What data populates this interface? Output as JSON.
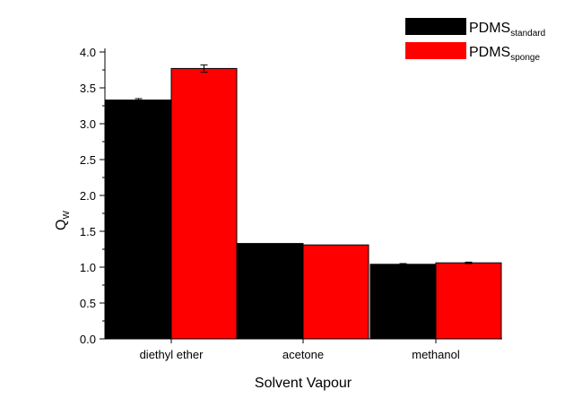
{
  "chart_data": {
    "type": "bar",
    "categories": [
      "diethyl ether",
      "acetone",
      "methanol"
    ],
    "series": [
      {
        "name_main": "PDMS",
        "name_sub": "standard",
        "color": "#000000",
        "values": [
          3.33,
          1.33,
          1.04
        ],
        "errors": [
          0.02,
          0.0,
          0.01
        ]
      },
      {
        "name_main": "PDMS",
        "name_sub": "sponge",
        "color": "#ff0000",
        "values": [
          3.77,
          1.31,
          1.06
        ],
        "errors": [
          0.05,
          0.0,
          0.01
        ]
      }
    ],
    "xlabel": "Solvent Vapour",
    "ylabel_main": "Q",
    "ylabel_sub": "W",
    "ylim": [
      0,
      4.0
    ],
    "yticks": [
      "0.0",
      "0.5",
      "1.0",
      "1.5",
      "2.0",
      "2.5",
      "3.0",
      "3.5",
      "4.0"
    ],
    "grid": false,
    "legend_position": "top-right"
  }
}
